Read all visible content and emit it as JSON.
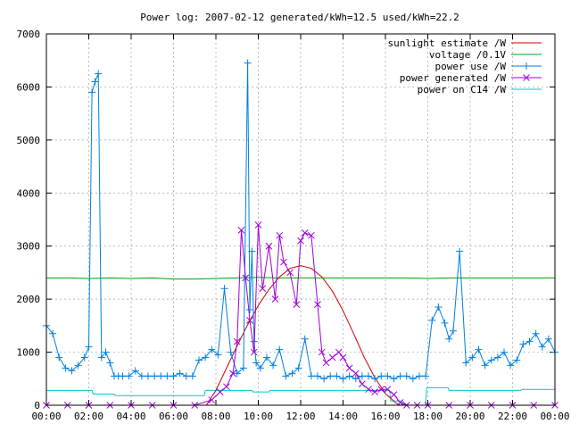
{
  "chart_data": {
    "type": "line",
    "title": "Power log: 2007-02-12 generated/kWh=12.5 used/kWh=22.2",
    "xlabel": "",
    "ylabel": "",
    "x_unit": "hours",
    "xlim": [
      0,
      24
    ],
    "ylim": [
      0,
      7000
    ],
    "x_ticks": [
      "00:00",
      "02:00",
      "04:00",
      "06:00",
      "08:00",
      "10:00",
      "12:00",
      "14:00",
      "16:00",
      "18:00",
      "20:00",
      "22:00",
      "00:00"
    ],
    "y_ticks": [
      "0",
      "1000",
      "2000",
      "3000",
      "4000",
      "5000",
      "6000",
      "7000"
    ],
    "grid": true,
    "legend_position": "top-right",
    "series": [
      {
        "name": "sunlight estimate /W",
        "color": "#cc0000",
        "marker": "none",
        "x": [
          7.55,
          8,
          8.5,
          9,
          9.5,
          10,
          10.5,
          11,
          11.5,
          12,
          12.5,
          13,
          13.5,
          14,
          14.5,
          15,
          15.5,
          16,
          16.5,
          16.7
        ],
        "y": [
          0,
          280,
          700,
          1120,
          1520,
          1880,
          2180,
          2420,
          2580,
          2630,
          2580,
          2420,
          2150,
          1780,
          1350,
          900,
          520,
          220,
          40,
          0
        ]
      },
      {
        "name": "voltage /0.1V",
        "color": "#00a000",
        "marker": "none",
        "x": [
          0,
          1,
          2,
          3,
          4,
          5,
          6,
          7,
          8,
          9,
          10,
          11,
          12,
          13,
          14,
          15,
          16,
          17,
          18,
          19,
          20,
          21,
          22,
          23,
          24
        ],
        "y": [
          2400,
          2400,
          2390,
          2400,
          2390,
          2400,
          2380,
          2380,
          2390,
          2400,
          2410,
          2400,
          2400,
          2400,
          2400,
          2400,
          2400,
          2400,
          2390,
          2400,
          2400,
          2400,
          2400,
          2400,
          2400
        ]
      },
      {
        "name": "power use /W",
        "color": "#0080e0",
        "marker": "plus",
        "x": [
          0,
          0.3,
          0.6,
          0.9,
          1.2,
          1.5,
          1.8,
          2.0,
          2.15,
          2.3,
          2.45,
          2.6,
          2.8,
          3.0,
          3.2,
          3.4,
          3.6,
          3.9,
          4.2,
          4.5,
          4.8,
          5.1,
          5.4,
          5.7,
          6.0,
          6.3,
          6.6,
          6.9,
          7.2,
          7.5,
          7.8,
          8.1,
          8.4,
          8.7,
          9.0,
          9.3,
          9.5,
          9.6,
          9.7,
          9.8,
          9.9,
          10.1,
          10.4,
          10.7,
          11.0,
          11.3,
          11.6,
          11.9,
          12.2,
          12.5,
          12.8,
          13.1,
          13.4,
          13.7,
          14.0,
          14.3,
          14.6,
          14.9,
          15.2,
          15.5,
          15.8,
          16.1,
          16.4,
          16.7,
          17.0,
          17.3,
          17.6,
          17.9,
          18.2,
          18.5,
          18.8,
          19.0,
          19.2,
          19.5,
          19.8,
          20.1,
          20.4,
          20.7,
          21.0,
          21.3,
          21.6,
          21.9,
          22.2,
          22.5,
          22.8,
          23.1,
          23.4,
          23.7,
          24
        ],
        "y": [
          1500,
          1350,
          900,
          700,
          650,
          750,
          900,
          1100,
          5900,
          6100,
          6250,
          900,
          1000,
          800,
          550,
          550,
          550,
          550,
          650,
          550,
          550,
          550,
          550,
          550,
          550,
          600,
          550,
          550,
          850,
          900,
          1050,
          950,
          2200,
          1000,
          600,
          700,
          6450,
          1800,
          2900,
          1200,
          800,
          700,
          900,
          750,
          1050,
          550,
          600,
          700,
          1250,
          550,
          550,
          500,
          550,
          550,
          500,
          550,
          500,
          550,
          550,
          500,
          550,
          550,
          500,
          550,
          550,
          500,
          550,
          550,
          1600,
          1850,
          1550,
          1250,
          1400,
          2900,
          800,
          900,
          1050,
          750,
          850,
          900,
          1000,
          750,
          850,
          1150,
          1200,
          1350,
          1100,
          1250,
          1000
        ]
      },
      {
        "name": "power generated /W",
        "color": "#a000d8",
        "marker": "x",
        "x": [
          0,
          1,
          2,
          3,
          4,
          5,
          6,
          7,
          7.8,
          8.2,
          8.5,
          8.8,
          9.0,
          9.2,
          9.4,
          9.6,
          9.8,
          10.0,
          10.2,
          10.5,
          10.8,
          11.0,
          11.2,
          11.5,
          11.8,
          12.0,
          12.2,
          12.5,
          12.8,
          13.0,
          13.2,
          13.5,
          13.8,
          14.0,
          14.3,
          14.6,
          14.9,
          15.2,
          15.5,
          15.8,
          16.1,
          16.4,
          16.7,
          17.0,
          17.5,
          18,
          19,
          20,
          21,
          22,
          23,
          24
        ],
        "y": [
          0,
          0,
          0,
          0,
          0,
          0,
          0,
          0,
          100,
          250,
          350,
          600,
          1200,
          3300,
          2400,
          1600,
          1000,
          3400,
          2200,
          3000,
          2000,
          3200,
          2700,
          2500,
          1900,
          3100,
          3250,
          3200,
          1900,
          1000,
          800,
          900,
          1000,
          900,
          700,
          600,
          400,
          300,
          250,
          300,
          300,
          200,
          50,
          0,
          0,
          0,
          0,
          0,
          0,
          0,
          0,
          0
        ]
      },
      {
        "name": "power on C14 /W",
        "color": "#00c8c8",
        "marker": "none",
        "x": [
          0,
          2.15,
          2.2,
          3.2,
          3.25,
          7.45,
          7.5,
          9.7,
          9.75,
          10.5,
          10.55,
          16.2,
          16.25,
          16.8,
          16.85,
          17.9,
          17.95,
          18.95,
          19.0,
          22.4,
          22.45,
          24
        ],
        "y": [
          280,
          280,
          210,
          210,
          180,
          180,
          280,
          280,
          250,
          250,
          280,
          280,
          80,
          80,
          0,
          0,
          330,
          330,
          280,
          280,
          300,
          300
        ]
      }
    ]
  }
}
